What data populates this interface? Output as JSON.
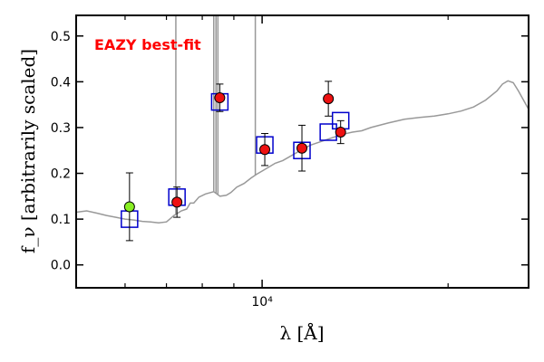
{
  "chart_data": {
    "type": "scatter",
    "title": "",
    "xlabel": "λ [Å]",
    "ylabel": "f_ν [arbitrarily scaled]",
    "xscale": "log",
    "xlim": [
      5000,
      27000
    ],
    "ylim": [
      -0.05,
      0.545
    ],
    "yticks": [
      0.0,
      0.1,
      0.2,
      0.3,
      0.4,
      0.5
    ],
    "ytick_labels": [
      "0.0",
      "0.1",
      "0.2",
      "0.3",
      "0.4",
      "0.5"
    ],
    "xtick_major": [
      10000
    ],
    "xtick_major_labels": [
      "10⁴"
    ],
    "xtick_minor": [
      6000,
      7000,
      8000,
      9000,
      20000
    ],
    "grid": false,
    "annotation": {
      "text": "EAZY best-fit",
      "color": "#ff0000"
    },
    "template": {
      "color": "#999999",
      "x": [
        5000,
        5200,
        5400,
        5600,
        5800,
        6000,
        6200,
        6400,
        6600,
        6800,
        7000,
        7200,
        7400,
        7550,
        7650,
        7750,
        7900,
        8100,
        8350,
        8550,
        8750,
        8900,
        9100,
        9350,
        9600,
        9800,
        10000,
        10200,
        10500,
        10800,
        11200,
        11600,
        12000,
        12500,
        13000,
        13500,
        14000,
        14500,
        15000,
        16000,
        17000,
        18000,
        19000,
        20000,
        21000,
        22000,
        23000,
        24000,
        24500,
        25000,
        25500,
        26000,
        27000
      ],
      "y": [
        0.115,
        0.118,
        0.113,
        0.108,
        0.104,
        0.1,
        0.098,
        0.095,
        0.094,
        0.092,
        0.094,
        0.108,
        0.118,
        0.122,
        0.135,
        0.135,
        0.148,
        0.155,
        0.16,
        0.15,
        0.152,
        0.158,
        0.17,
        0.178,
        0.19,
        0.198,
        0.205,
        0.212,
        0.222,
        0.228,
        0.24,
        0.252,
        0.262,
        0.27,
        0.278,
        0.285,
        0.29,
        0.293,
        0.3,
        0.31,
        0.318,
        0.322,
        0.325,
        0.33,
        0.336,
        0.345,
        0.36,
        0.38,
        0.395,
        0.402,
        0.398,
        0.38,
        0.34
      ]
    },
    "emission_lines": [
      {
        "x": 7250,
        "peak": 0.545
      },
      {
        "x": 8350,
        "peak": 0.545
      },
      {
        "x": 8420,
        "peak": 0.545
      },
      {
        "x": 8480,
        "peak": 0.545
      },
      {
        "x": 9750,
        "peak": 0.545
      }
    ],
    "model_photometry": {
      "color": "#0000cc",
      "x": [
        6100,
        7280,
        8540,
        10100,
        11600,
        12800,
        13400
      ],
      "y": [
        0.1,
        0.148,
        0.356,
        0.262,
        0.25,
        0.29,
        0.315
      ]
    },
    "observed": {
      "x": [
        6100,
        7280,
        8540,
        10100,
        11600,
        12800,
        13400
      ],
      "y": [
        0.127,
        0.137,
        0.365,
        0.252,
        0.255,
        0.363,
        0.29
      ],
      "yerr": [
        0.074,
        0.033,
        0.03,
        0.035,
        0.05,
        0.038,
        0.025
      ],
      "colors": [
        "#88ee22",
        "#ee1111",
        "#ee1111",
        "#ee1111",
        "#ee1111",
        "#ee1111",
        "#ee1111"
      ]
    }
  }
}
